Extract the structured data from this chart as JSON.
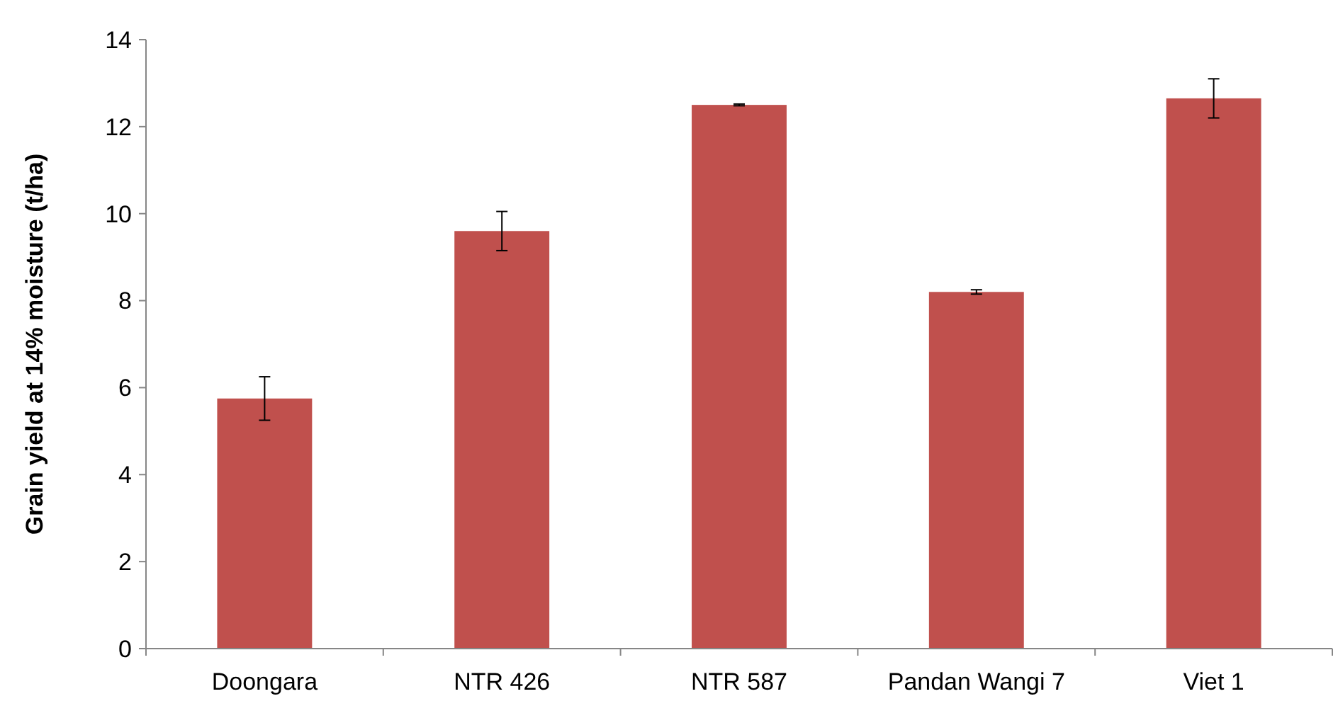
{
  "chart_data": {
    "type": "bar",
    "ylabel": "Grain yield at 14% moisture (t/ha)",
    "categories": [
      "Doongara",
      "NTR 426",
      "NTR 587",
      "Pandan Wangi 7",
      "Viet 1"
    ],
    "values": [
      5.75,
      9.6,
      12.5,
      8.2,
      12.65
    ],
    "errors": [
      0.5,
      0.45,
      0.02,
      0.05,
      0.45
    ],
    "color": "#c0504d",
    "ylim": [
      0,
      14
    ],
    "yticks": [
      0,
      2,
      4,
      6,
      8,
      10,
      12,
      14
    ],
    "grid": false
  }
}
